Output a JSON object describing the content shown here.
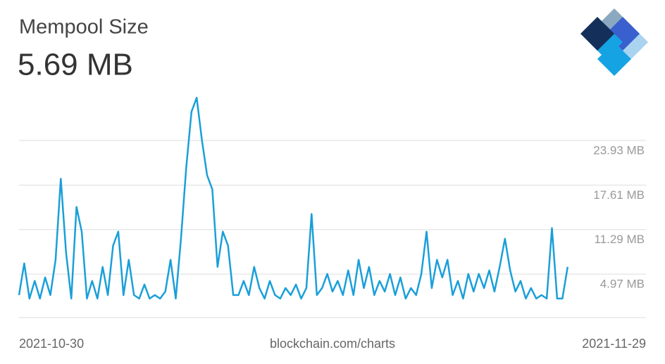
{
  "chart_data": {
    "type": "line",
    "title": "Mempool Size",
    "subtitle": "5.69 MB",
    "source": "blockchain.com/charts",
    "xlim": [
      0,
      30
    ],
    "xticks": [
      {
        "value": 0,
        "label": "2021-10-30"
      },
      {
        "value": 30,
        "label": "2021-11-29"
      }
    ],
    "ylim": [
      -1.2,
      30.9
    ],
    "yticks": [
      {
        "value": 4.97,
        "label": "4.97 MB"
      },
      {
        "value": 11.29,
        "label": "11.29 MB"
      },
      {
        "value": 17.61,
        "label": "17.61 MB"
      },
      {
        "value": 23.93,
        "label": "23.93 MB"
      }
    ],
    "grid": true,
    "series": [
      {
        "name": "Mempool Size",
        "color": "#1a9fd9",
        "x": [
          0,
          0.25,
          0.5,
          0.75,
          1,
          1.25,
          1.5,
          1.75,
          2,
          2.25,
          2.5,
          2.75,
          3,
          3.25,
          3.5,
          3.75,
          4,
          4.25,
          4.5,
          4.75,
          5,
          5.25,
          5.5,
          5.75,
          6,
          6.25,
          6.5,
          6.75,
          7,
          7.25,
          7.5,
          7.75,
          8,
          8.25,
          8.5,
          8.75,
          9,
          9.25,
          9.5,
          9.75,
          10,
          10.25,
          10.5,
          10.75,
          11,
          11.25,
          11.5,
          11.75,
          12,
          12.25,
          12.5,
          12.75,
          13,
          13.25,
          13.5,
          13.75,
          14,
          14.25,
          14.5,
          14.75,
          15,
          15.25,
          15.5,
          15.75,
          16,
          16.25,
          16.5,
          16.75,
          17,
          17.25,
          17.5,
          17.75,
          18,
          18.25,
          18.5,
          18.75,
          19,
          19.25,
          19.5,
          19.75,
          20,
          20.25,
          20.5,
          20.75,
          21,
          21.25,
          21.5,
          21.75,
          22,
          22.25,
          22.5,
          22.75,
          23,
          23.25,
          23.5,
          23.75,
          24,
          24.25,
          24.5,
          24.75,
          25,
          25.25,
          25.5,
          25.75,
          26,
          26.25
        ],
        "values": [
          2,
          6.5,
          1.5,
          4,
          1.5,
          4.5,
          2,
          7,
          18.5,
          8,
          1.5,
          14.5,
          11,
          1.5,
          4,
          1.5,
          6,
          2,
          9,
          11,
          2,
          7,
          2,
          1.5,
          3.5,
          1.5,
          2,
          1.5,
          2.5,
          7,
          1.5,
          10,
          20,
          28,
          30,
          24,
          19,
          17,
          6,
          11,
          9,
          2,
          2,
          4,
          2,
          6,
          3,
          1.5,
          4,
          2,
          1.5,
          3,
          2,
          3.5,
          1.5,
          3,
          13.5,
          2,
          3,
          5,
          2.5,
          4,
          2,
          5.5,
          2,
          7,
          3,
          6,
          2,
          4,
          2.5,
          5,
          2,
          4.5,
          1.5,
          3,
          2,
          5,
          11,
          3,
          7,
          4.5,
          7,
          2,
          4,
          1.5,
          5,
          2.5,
          5,
          3,
          5.5,
          2.5,
          6,
          10,
          5.5,
          2.5,
          4,
          1.5,
          3,
          1.5,
          2,
          1.5,
          11.5,
          1.5,
          1.5,
          6
        ]
      }
    ]
  }
}
